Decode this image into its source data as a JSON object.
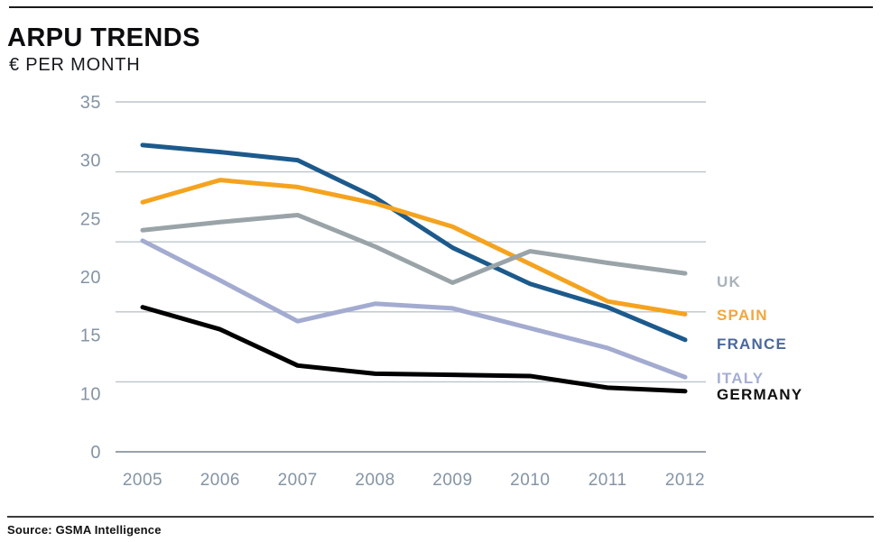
{
  "header": {
    "title": "ARPU TRENDS",
    "subtitle": "€ PER MONTH"
  },
  "footer": {
    "source": "Source: GSMA Intelligence"
  },
  "chart_data": {
    "type": "line",
    "title": "ARPU TRENDS",
    "subtitle": "€ PER MONTH",
    "xlabel": "",
    "ylabel": "€ per month",
    "categories": [
      "2005",
      "2006",
      "2007",
      "2008",
      "2009",
      "2010",
      "2011",
      "2012"
    ],
    "series": [
      {
        "name": "UK",
        "label": "UK",
        "color": "#9aa4a8",
        "label_color": "#a9b2b9",
        "values": [
          24.0,
          24.7,
          25.3,
          22.6,
          19.5,
          22.2,
          21.2,
          20.3
        ]
      },
      {
        "name": "SPAIN",
        "label": "SPAIN",
        "color": "#f5a31f",
        "label_color": "#f2a73b",
        "values": [
          26.4,
          28.3,
          27.7,
          26.3,
          24.3,
          21.1,
          17.9,
          16.8
        ]
      },
      {
        "name": "FRANCE",
        "label": "FRANCE",
        "color": "#1d5a8c",
        "label_color": "#4a689c",
        "values": [
          31.3,
          30.7,
          30.0,
          26.8,
          22.5,
          19.4,
          17.4,
          14.6
        ]
      },
      {
        "name": "ITALY",
        "label": "ITALY",
        "color": "#a3abd0",
        "label_color": "#a5aed2",
        "values": [
          23.1,
          19.7,
          16.2,
          17.7,
          17.3,
          15.6,
          13.9,
          11.4
        ]
      },
      {
        "name": "GERMANY",
        "label": "GERMANY",
        "color": "#000000",
        "label_color": "#111111",
        "values": [
          17.4,
          15.5,
          12.4,
          11.7,
          11.6,
          11.5,
          10.5,
          10.2
        ]
      }
    ],
    "y_ticks": [
      35,
      30,
      25,
      20,
      15,
      10,
      0
    ],
    "ylim": [
      0,
      35
    ],
    "grid": "horizontal gridlines only",
    "legend_position": "right of last data point"
  }
}
